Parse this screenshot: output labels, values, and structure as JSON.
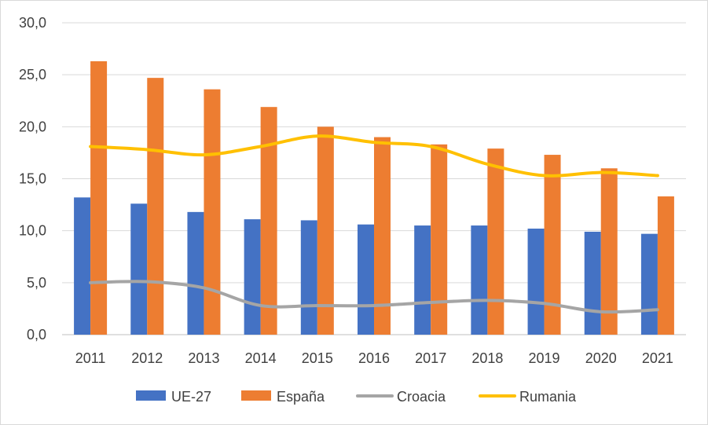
{
  "chart_data": {
    "type": "bar",
    "title": "",
    "xlabel": "",
    "ylabel": "",
    "ylim": [
      0,
      30
    ],
    "yticks": [
      "0,0",
      "5,0",
      "10,0",
      "15,0",
      "20,0",
      "25,0",
      "30,0"
    ],
    "grid": true,
    "legend_position": "bottom",
    "categories": [
      "2011",
      "2012",
      "2013",
      "2014",
      "2015",
      "2016",
      "2017",
      "2018",
      "2019",
      "2020",
      "2021"
    ],
    "series": [
      {
        "name": "UE-27",
        "kind": "bar",
        "color": "#4472C4",
        "values": [
          13.2,
          12.6,
          11.8,
          11.1,
          11.0,
          10.6,
          10.5,
          10.5,
          10.2,
          9.9,
          9.7
        ]
      },
      {
        "name": "España",
        "kind": "bar",
        "color": "#ED7D31",
        "values": [
          26.3,
          24.7,
          23.6,
          21.9,
          20.0,
          19.0,
          18.3,
          17.9,
          17.3,
          16.0,
          13.3
        ]
      },
      {
        "name": "Croacia",
        "kind": "line",
        "color": "#A5A5A5",
        "values": [
          5.0,
          5.1,
          4.5,
          2.8,
          2.8,
          2.8,
          3.1,
          3.3,
          3.0,
          2.2,
          2.4
        ]
      },
      {
        "name": "Rumania",
        "kind": "line",
        "color": "#FFC000",
        "values": [
          18.1,
          17.8,
          17.3,
          18.1,
          19.1,
          18.5,
          18.1,
          16.4,
          15.3,
          15.6,
          15.3
        ]
      }
    ]
  }
}
